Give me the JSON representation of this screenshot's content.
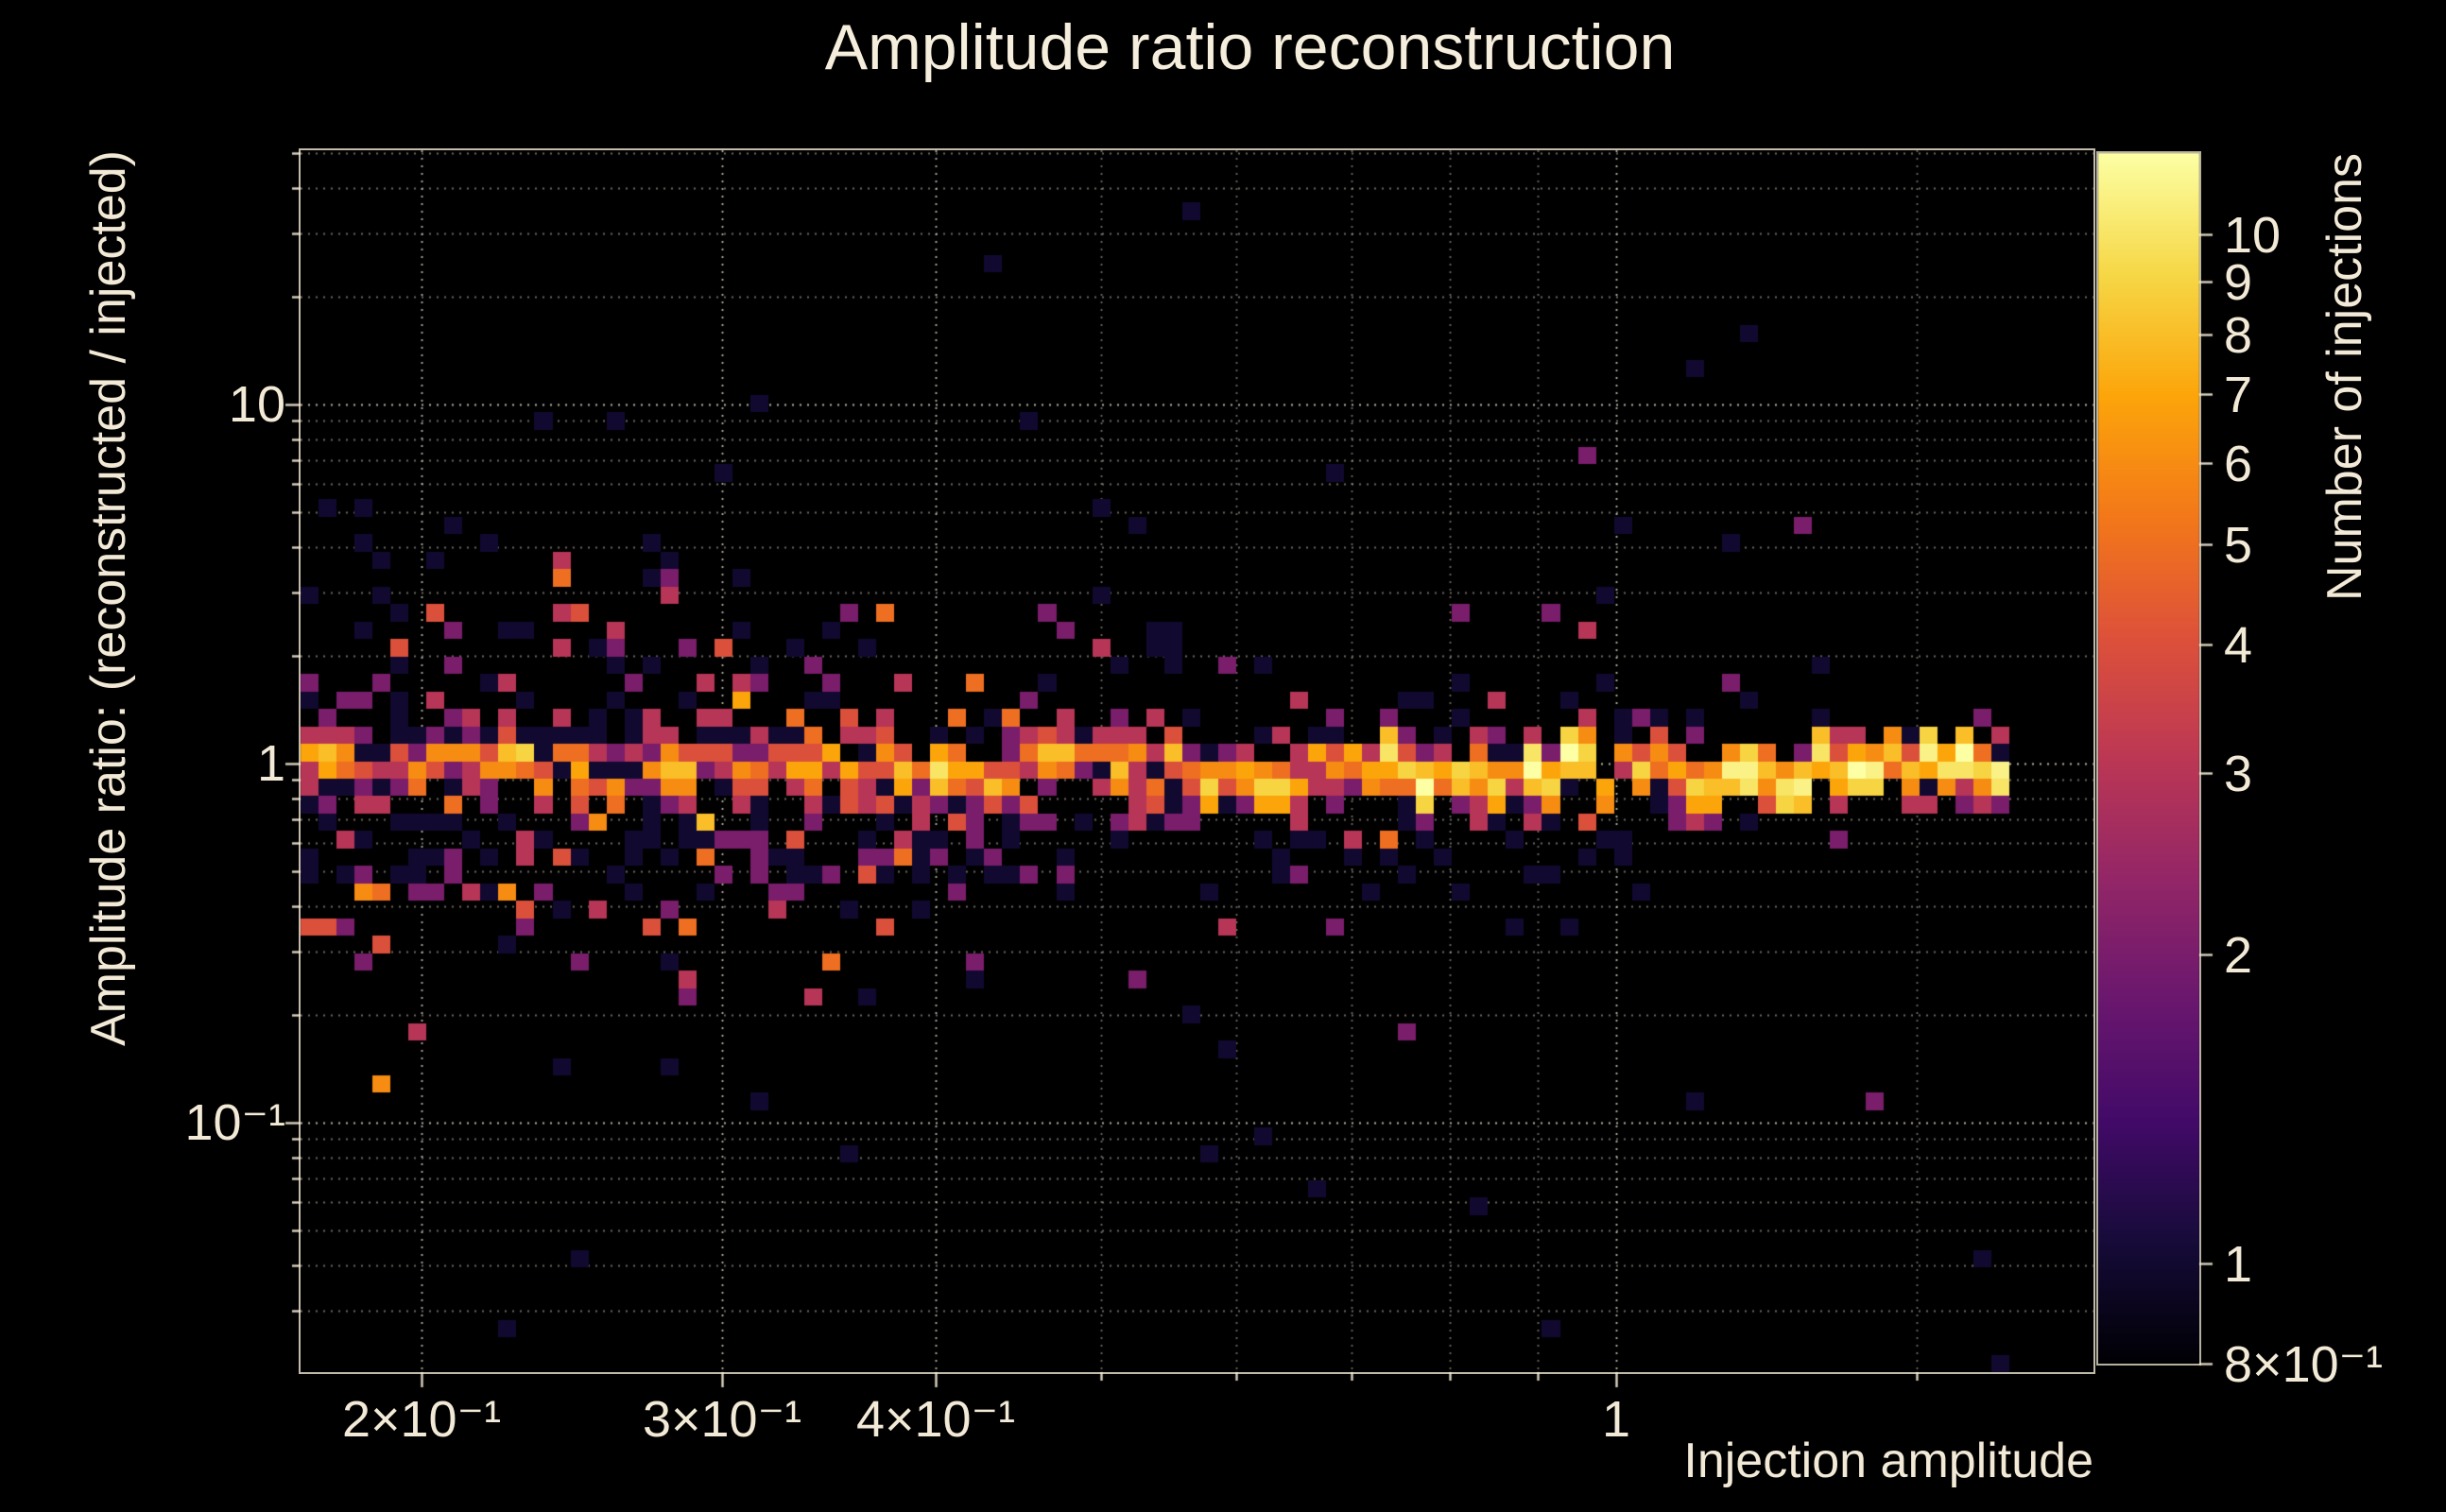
{
  "chart_data": {
    "type": "heatmap",
    "title": "Amplitude ratio reconstruction",
    "xlabel": "Injection amplitude",
    "ylabel": "Amplitude ratio: (reconstructed / injected)",
    "colorbar_label": "Number of injections",
    "x_scale": "log",
    "y_scale": "log",
    "color_scale": "log",
    "x_axis_range": [
      0.17,
      1.903
    ],
    "y_axis_range": [
      0.0202,
      51.0
    ],
    "color_range": [
      0.8,
      12
    ],
    "x_ticks": [
      {
        "value": 0.2,
        "label": "2×10⁻¹"
      },
      {
        "value": 0.3,
        "label": "3×10⁻¹"
      },
      {
        "value": 0.4,
        "label": "4×10⁻¹"
      },
      {
        "value": 1.0,
        "label": "1"
      }
    ],
    "y_ticks": [
      {
        "value": 10,
        "label": "10"
      },
      {
        "value": 1,
        "label": "1"
      },
      {
        "value": 0.1,
        "label": "10⁻¹"
      }
    ],
    "colorbar_ticks": [
      {
        "value": 10,
        "label": "10"
      },
      {
        "value": 9,
        "label": "9"
      },
      {
        "value": 8,
        "label": "8"
      },
      {
        "value": 7,
        "label": "7"
      },
      {
        "value": 6,
        "label": "6"
      },
      {
        "value": 5,
        "label": "5"
      },
      {
        "value": 4,
        "label": "4"
      },
      {
        "value": 3,
        "label": "3"
      },
      {
        "value": 2,
        "label": "2"
      },
      {
        "value": 1,
        "label": "1"
      },
      {
        "value": 0.8,
        "label": "8×10⁻¹"
      }
    ],
    "x_gridlines": {
      "major": [
        0.2,
        0.3,
        0.4,
        1.0
      ],
      "minor": [
        0.5,
        0.6,
        0.7,
        0.8,
        0.9,
        1.5
      ]
    },
    "y_gridlines": {
      "major": [
        0.1,
        1.0,
        10.0
      ],
      "minor": [
        0.03,
        0.04,
        0.05,
        0.06,
        0.07,
        0.08,
        0.09,
        0.2,
        0.3,
        0.4,
        0.5,
        0.6,
        0.7,
        0.8,
        0.9,
        2,
        3,
        4,
        5,
        6,
        7,
        8,
        9,
        20,
        30,
        40,
        50
      ]
    },
    "grid_color": "#d9d2c2",
    "background_color": "#000000",
    "text_color": "#f2e9d6",
    "colormap": {
      "name": "inferno",
      "stops": [
        [
          0.0,
          "#000004"
        ],
        [
          0.1,
          "#160b39"
        ],
        [
          0.2,
          "#420a68"
        ],
        [
          0.3,
          "#6a176e"
        ],
        [
          0.4,
          "#932667"
        ],
        [
          0.5,
          "#bc3754"
        ],
        [
          0.6,
          "#dd513a"
        ],
        [
          0.7,
          "#f37819"
        ],
        [
          0.8,
          "#fca50a"
        ],
        [
          0.9,
          "#f6d746"
        ],
        [
          1.0,
          "#fcffa4"
        ]
      ]
    },
    "bins": {
      "nx": 95,
      "ny": 70,
      "x_min": 0.17,
      "x_max": 1.7,
      "y_min": 0.0202,
      "y_max": 51.0
    },
    "distribution": {
      "seed": 20240613,
      "band_ratio": 1.0,
      "core_count_min": 3,
      "core_count_span": 5,
      "core_count_right_boost": 5,
      "scatter_sigma_decades": {
        "left": 0.36,
        "right": 0.1
      },
      "scatter_cells": {
        "left": 7,
        "right": 2
      },
      "below_cluster": {
        "x_max": 0.46,
        "ratio_min": 0.44,
        "ratio_max": 0.8,
        "prob": 0.75
      },
      "stray_prob": 0.26,
      "outliers": [
        {
          "x": 0.434,
          "ratio": 24,
          "count": 1
        },
        {
          "x": 1.107,
          "ratio": 13,
          "count": 1
        },
        {
          "x": 0.687,
          "ratio": 6.5,
          "count": 1
        },
        {
          "x": 0.52,
          "ratio": 4.5,
          "count": 1
        },
        {
          "x": 0.92,
          "ratio": 0.027,
          "count": 1
        },
        {
          "x": 0.315,
          "ratio": 0.12,
          "count": 1
        },
        {
          "x": 0.245,
          "ratio": 0.042,
          "count": 1
        },
        {
          "x": 1.32,
          "ratio": 1.9,
          "count": 1
        },
        {
          "x": 0.56,
          "ratio": 0.19,
          "count": 1
        },
        {
          "x": 1.18,
          "ratio": 4.0,
          "count": 1
        },
        {
          "x": 0.175,
          "ratio": 5.2,
          "count": 1
        },
        {
          "x": 0.205,
          "ratio": 3.8,
          "count": 1
        }
      ]
    }
  }
}
